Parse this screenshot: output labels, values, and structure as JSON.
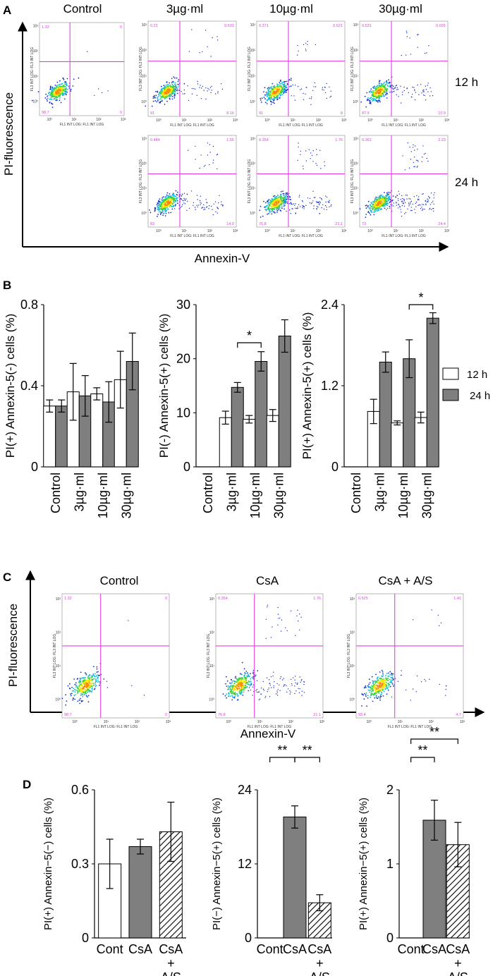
{
  "panel_labels": {
    "a": "A",
    "b": "B",
    "c": "C",
    "d": "D"
  },
  "panel_a": {
    "col_headers": [
      "Control",
      "3µg·ml",
      "10µg·ml",
      "30µg·ml"
    ],
    "row_labels": [
      "12 h",
      "24 h"
    ],
    "y_axis": "PI-fluorescence",
    "x_axis": "Annexin-V",
    "plot_xlabel": "FL1 INT LOG: FL1 INT LOG",
    "plot_ylabel": "FL3 INT LOG: FL3 INT LOG",
    "plots": [
      {
        "id": "ctrl",
        "q": [
          "1.32",
          "0",
          "98.7",
          "0"
        ]
      },
      {
        "id": "3-12",
        "q": [
          "0.21",
          "0.631",
          "91",
          "8.16"
        ]
      },
      {
        "id": "10-12",
        "q": [
          "0.371",
          "0.621",
          "91",
          "8"
        ]
      },
      {
        "id": "30-12",
        "q": [
          "0.531",
          "0.691",
          "87.9",
          "10.9"
        ]
      },
      {
        "id": "3-24",
        "q": [
          "0.444",
          "1.55",
          "83",
          "14.9"
        ]
      },
      {
        "id": "10-24",
        "q": [
          "0.354",
          "1.76",
          "76.8",
          "21.1"
        ]
      },
      {
        "id": "30-24",
        "q": [
          "0.362",
          "2.23",
          "73",
          "24.4"
        ]
      }
    ]
  },
  "panel_c": {
    "col_headers": [
      "Control",
      "CsA",
      "CsA + A/S"
    ],
    "y_axis": "PI-fluorescence",
    "x_axis": "Annexin-V",
    "plots": [
      {
        "id": "c-ctrl",
        "q": [
          "1.32",
          "0",
          "98.7",
          "0"
        ]
      },
      {
        "id": "c-csa",
        "q": [
          "0.354",
          "1.76",
          "76.8",
          "21.1"
        ]
      },
      {
        "id": "c-csaas",
        "q": [
          "0.525",
          "1.41",
          "93.4",
          "4.7"
        ]
      }
    ]
  },
  "chart_data": [
    {
      "type": "bar",
      "panel": "B",
      "ylabel": "PI(+) Annexin-5(-) cells (%)",
      "categories": [
        "Control",
        "3µg·ml",
        "10µg·ml",
        "30µg·ml"
      ],
      "ylim": [
        0,
        0.8
      ],
      "yticks": [
        "0",
        "0.4",
        "0.8"
      ],
      "ytick_values": [
        0,
        0.4,
        0.8
      ],
      "series": [
        {
          "name": "12 h",
          "values": [
            0.3,
            0.37,
            0.36,
            0.43
          ],
          "errors": [
            0.03,
            0.14,
            0.03,
            0.14
          ]
        },
        {
          "name": "24 h",
          "values": [
            0.3,
            0.35,
            0.32,
            0.52
          ],
          "errors": [
            0.03,
            0.1,
            0.1,
            0.14
          ]
        }
      ],
      "annotations": []
    },
    {
      "type": "bar",
      "panel": "B",
      "ylabel": "PI(-) Annexin-5(+) cells (%)",
      "categories": [
        "Control",
        "3µg·ml",
        "10µg·ml",
        "30µg·ml"
      ],
      "ylim": [
        0,
        30
      ],
      "yticks": [
        "0",
        "10",
        "20",
        "30"
      ],
      "ytick_values": [
        0,
        10,
        20,
        30
      ],
      "series": [
        {
          "name": "12 h",
          "values": [
            0,
            9.1,
            8.8,
            9.5
          ],
          "errors": [
            0,
            1.2,
            0.7,
            1.1
          ]
        },
        {
          "name": "24 h",
          "values": [
            0,
            14.7,
            19.5,
            24.2
          ],
          "errors": [
            0,
            0.9,
            1.8,
            3.0
          ]
        }
      ],
      "annotations": [
        {
          "text": "*",
          "from": [
            1,
            1
          ],
          "to": [
            2,
            1
          ]
        }
      ]
    },
    {
      "type": "bar",
      "panel": "B",
      "ylabel": "PI(+) Annexin-5(+) cells (%)",
      "categories": [
        "Control",
        "3µg·ml",
        "10µg·ml",
        "30µg·ml"
      ],
      "ylim": [
        0,
        2.4
      ],
      "yticks": [
        "0",
        "1.2",
        "2.4"
      ],
      "ytick_values": [
        0,
        1.2,
        2.4
      ],
      "series": [
        {
          "name": "12 h",
          "values": [
            0,
            0.82,
            0.65,
            0.73
          ],
          "errors": [
            0,
            0.18,
            0.03,
            0.08
          ]
        },
        {
          "name": "24 h",
          "values": [
            0,
            1.55,
            1.6,
            2.2
          ],
          "errors": [
            0,
            0.15,
            0.28,
            0.08
          ]
        }
      ],
      "annotations": [
        {
          "text": "*",
          "from": [
            2,
            1
          ],
          "to": [
            3,
            1
          ]
        }
      ]
    },
    {
      "type": "bar",
      "panel": "D",
      "ylabel": "PI(+) Annexin−5(−) cells (%)",
      "categories": [
        "Cont",
        "CsA",
        "CsA + A/S"
      ],
      "ylim": [
        0,
        0.6
      ],
      "yticks": [
        "0",
        "0.3",
        "0.6"
      ],
      "ytick_values": [
        0,
        0.3,
        0.6
      ],
      "series": [
        {
          "name": "",
          "values": [
            0.3,
            0.37,
            0.43
          ],
          "errors": [
            0.1,
            0.03,
            0.12
          ],
          "fills": [
            "white",
            "gray",
            "hatch"
          ]
        }
      ],
      "annotations": []
    },
    {
      "type": "bar",
      "panel": "D",
      "ylabel": "PI(−) Annexin−5(+) cells (%)",
      "categories": [
        "Cont",
        "CsA",
        "CsA + A/S"
      ],
      "ylim": [
        0,
        24
      ],
      "yticks": [
        "0",
        "12",
        "24"
      ],
      "ytick_values": [
        0,
        12,
        24
      ],
      "series": [
        {
          "name": "",
          "values": [
            0,
            19.6,
            5.7
          ],
          "errors": [
            0,
            1.8,
            1.3
          ],
          "fills": [
            "white",
            "gray",
            "hatch"
          ]
        }
      ],
      "annotations": [
        {
          "text": "**",
          "from": [
            0,
            0
          ],
          "to": [
            1,
            0
          ]
        },
        {
          "text": "**",
          "from": [
            1,
            0
          ],
          "to": [
            2,
            0
          ]
        }
      ]
    },
    {
      "type": "bar",
      "panel": "D",
      "ylabel": "PI(+) Annexin−5(+) cells (%)",
      "categories": [
        "Cont",
        "CsA",
        "CsA + A/S"
      ],
      "ylim": [
        0,
        2
      ],
      "yticks": [
        "0",
        "1",
        "2"
      ],
      "ytick_values": [
        0,
        1,
        2
      ],
      "series": [
        {
          "name": "",
          "values": [
            0,
            1.59,
            1.26
          ],
          "errors": [
            0,
            0.27,
            0.3
          ],
          "fills": [
            "white",
            "gray",
            "hatch"
          ]
        }
      ],
      "annotations": [
        {
          "text": "**",
          "from": [
            0,
            0
          ],
          "to": [
            1,
            0
          ]
        },
        {
          "text": "**",
          "from": [
            0,
            0
          ],
          "to": [
            2,
            0
          ]
        }
      ]
    }
  ],
  "legend": {
    "items": [
      "12 h",
      "24 h"
    ]
  },
  "colors": {
    "gray": "#7f7f7f",
    "magenta": "#e040e0",
    "quad": "#e040e0"
  }
}
